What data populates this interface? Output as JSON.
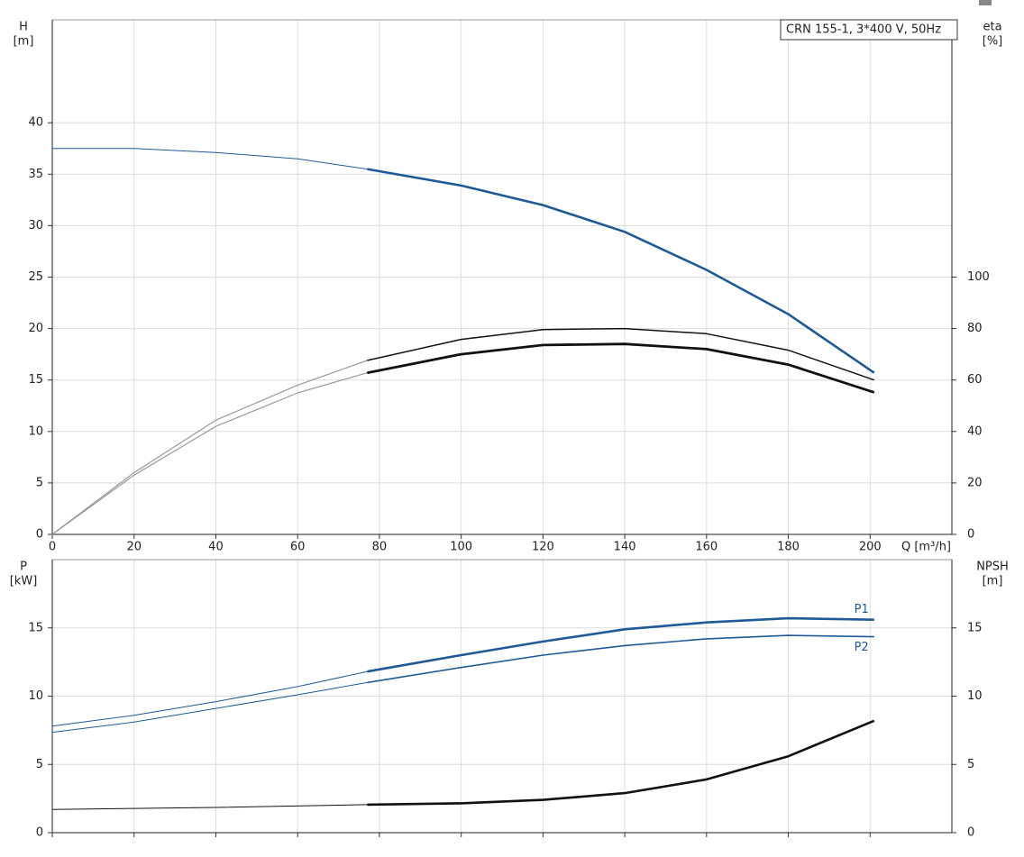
{
  "chart_data": [
    {
      "type": "line",
      "title": "CRN 155-1, 3*400 V, 50Hz",
      "y_label": [
        "H",
        "[m]"
      ],
      "y2_label": [
        "eta",
        "[%]"
      ],
      "x_label": "Q [m³/h]",
      "xlim": [
        0,
        220
      ],
      "xticks": [
        0,
        20,
        40,
        60,
        80,
        100,
        120,
        140,
        160,
        180,
        200
      ],
      "show_xtick_labels": true,
      "ylim": [
        0,
        50
      ],
      "yticks": [
        0,
        5,
        10,
        15,
        20,
        25,
        30,
        35,
        40
      ],
      "y2lim": [
        0,
        200
      ],
      "y2ticks": [
        0,
        20,
        40,
        60,
        80,
        100
      ],
      "grid": true,
      "series": [
        {
          "parts": [
            {
              "color": "#1f5a96",
              "width": 1,
              "x": [
                0,
                20,
                40,
                60,
                77
              ],
              "values": [
                37.5,
                37.5,
                37.1,
                36.5,
                35.5
              ]
            },
            {
              "color": "#1f5a96",
              "width": 2.6,
              "x": [
                77,
                100,
                120,
                140,
                160,
                180,
                201
              ],
              "values": [
                35.5,
                33.9,
                32.0,
                29.4,
                25.7,
                21.4,
                15.7
              ]
            }
          ]
        },
        {
          "axis": "y2",
          "parts": [
            {
              "color": "#999999",
              "width": 1.2,
              "x": [
                0,
                20,
                40,
                60,
                77
              ],
              "values": [
                0,
                24,
                44.4,
                58,
                67.6
              ]
            },
            {
              "color": "#111111",
              "width": 1.5,
              "x": [
                77,
                100,
                120,
                140,
                160,
                180,
                201
              ],
              "values": [
                67.6,
                75.8,
                79.6,
                80,
                78,
                71.6,
                60
              ]
            }
          ]
        },
        {
          "axis": "y2",
          "parts": [
            {
              "color": "#999999",
              "width": 1.2,
              "x": [
                0,
                20,
                40,
                60,
                77
              ],
              "values": [
                0,
                23,
                42,
                55,
                62.8
              ]
            },
            {
              "color": "#111111",
              "width": 2.8,
              "x": [
                77,
                100,
                120,
                140,
                160,
                180,
                201
              ],
              "values": [
                62.8,
                70,
                73.6,
                74,
                72,
                66,
                55.2
              ]
            }
          ]
        }
      ]
    },
    {
      "type": "line",
      "y_label": [
        "P",
        "[kW]"
      ],
      "y2_label": [
        "NPSH",
        "[m]"
      ],
      "xlim": [
        0,
        220
      ],
      "xticks": [
        0,
        20,
        40,
        60,
        80,
        100,
        120,
        140,
        160,
        180,
        200
      ],
      "show_xtick_labels": false,
      "ylim": [
        0,
        20
      ],
      "yticks": [
        0,
        5,
        10,
        15
      ],
      "y2lim": [
        0,
        20
      ],
      "y2ticks": [
        0,
        5,
        10,
        15
      ],
      "grid": true,
      "series": [
        {
          "name": "P1",
          "parts": [
            {
              "color": "#1f5a96",
              "width": 1,
              "x": [
                0,
                20,
                40,
                60,
                77
              ],
              "values": [
                7.8,
                8.6,
                9.6,
                10.7,
                11.8
              ]
            },
            {
              "color": "#1f5a96",
              "width": 2.6,
              "x": [
                77,
                100,
                120,
                140,
                160,
                180,
                201
              ],
              "values": [
                11.8,
                13.0,
                14.0,
                14.9,
                15.4,
                15.7,
                15.6
              ]
            }
          ]
        },
        {
          "name": "P2",
          "parts": [
            {
              "color": "#1f5a96",
              "width": 1,
              "x": [
                0,
                20,
                40,
                60,
                77
              ],
              "values": [
                7.35,
                8.1,
                9.1,
                10.1,
                11.0
              ]
            },
            {
              "color": "#1f5a96",
              "width": 1.6,
              "x": [
                77,
                100,
                120,
                140,
                160,
                180,
                201
              ],
              "values": [
                11.0,
                12.1,
                13.0,
                13.7,
                14.2,
                14.45,
                14.35
              ]
            }
          ]
        },
        {
          "axis": "y2",
          "parts": [
            {
              "color": "#111111",
              "width": 1,
              "x": [
                0,
                40,
                77
              ],
              "values": [
                1.7,
                1.85,
                2.05
              ]
            },
            {
              "color": "#111111",
              "width": 2.6,
              "x": [
                77,
                100,
                120,
                140,
                160,
                180,
                201
              ],
              "values": [
                2.05,
                2.15,
                2.4,
                2.9,
                3.9,
                5.6,
                8.2
              ]
            }
          ]
        }
      ]
    }
  ]
}
